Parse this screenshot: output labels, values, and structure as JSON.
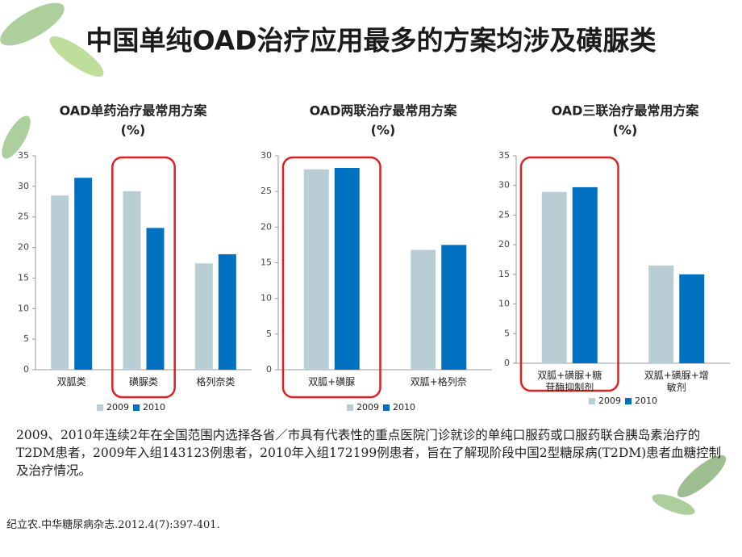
{
  "title": "中国单纯OAD治疗应用最多的方案均涉及磺脲类",
  "chart_data": [
    {
      "type": "bar",
      "title": "OAD单药治疗最常用方案",
      "subtitle": "(%)",
      "categories": [
        "双胍类",
        "磺脲类",
        "格列奈类"
      ],
      "series": [
        {
          "name": "2009",
          "color": "#b8cdd4",
          "values": [
            28.5,
            29.2,
            17.4
          ]
        },
        {
          "name": "2010",
          "color": "#0070c0",
          "values": [
            31.4,
            23.2,
            18.9
          ]
        }
      ],
      "ylim": [
        0,
        35
      ],
      "yticks": [
        0,
        5,
        10,
        15,
        20,
        25,
        30,
        35
      ]
    },
    {
      "type": "bar",
      "title": "OAD两联治疗最常用方案",
      "subtitle": "(%)",
      "categories": [
        "双胍+磺脲",
        "双胍+格列奈"
      ],
      "series": [
        {
          "name": "2009",
          "color": "#b8cdd4",
          "values": [
            28.1,
            16.8
          ]
        },
        {
          "name": "2010",
          "color": "#0070c0",
          "values": [
            28.3,
            17.5
          ]
        }
      ],
      "ylim": [
        0,
        30
      ],
      "yticks": [
        0,
        5,
        10,
        15,
        20,
        25,
        30
      ]
    },
    {
      "type": "bar",
      "title": "OAD三联治疗最常用方案",
      "subtitle": "(%)",
      "categories": [
        "双胍+磺脲+糖苷酶抑制剂",
        "双胍+磺脲+增敏剂"
      ],
      "series": [
        {
          "name": "2009",
          "color": "#b8cdd4",
          "values": [
            28.9,
            16.5
          ]
        },
        {
          "name": "2010",
          "color": "#0070c0",
          "values": [
            29.7,
            15.0
          ]
        }
      ],
      "ylim": [
        0,
        35
      ],
      "yticks": [
        0,
        5,
        10,
        15,
        20,
        25,
        30,
        35
      ]
    }
  ],
  "description": "2009、2010年连续2年在全国范围内选择各省／市具有代表性的重点医院门诊就诊的单纯口服药或口服药联合胰岛素治疗的T2DM患者，2009年入组143123例患者，2010年入组172199例患者，旨在了解现阶段中国2型糖尿病(T2DM)患者血糖控制及治疗情况。",
  "citation": "纪立农.中华糖尿病杂志.2012.4(7):397-401."
}
